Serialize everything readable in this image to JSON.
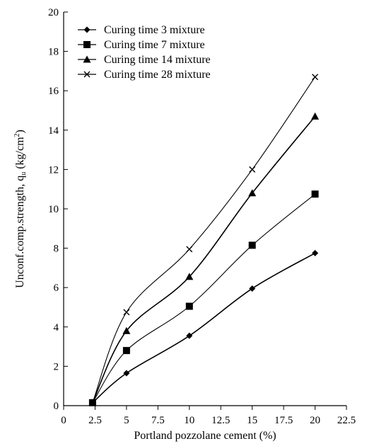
{
  "chart_data": {
    "type": "line",
    "xlabel": "Portland pozzolane cement (%)",
    "ylabel_main": "Unconf.comp.strength, q",
    "ylabel_sub": "u",
    "ylabel_unit": " (kg/cm",
    "ylabel_sup": "2",
    "ylabel_close": ")",
    "xlim": [
      0,
      22.5
    ],
    "ylim": [
      0,
      20
    ],
    "xticks": [
      "0",
      "2.5",
      "5",
      "7.5",
      "10",
      "12.5",
      "15",
      "17.5",
      "20",
      "22.5"
    ],
    "yticks": [
      "0",
      "2",
      "4",
      "6",
      "8",
      "10",
      "12",
      "14",
      "16",
      "18",
      "20"
    ],
    "legend_position": "top-left",
    "grid": false,
    "x": [
      2.3,
      5,
      10,
      15,
      20
    ],
    "series": [
      {
        "name": "Curing time 3 mixture",
        "marker": "diamond",
        "values": [
          0.15,
          1.65,
          3.55,
          5.95,
          7.75
        ]
      },
      {
        "name": "Curing time 7 mixture",
        "marker": "square",
        "values": [
          0.15,
          2.8,
          5.05,
          8.15,
          10.75
        ]
      },
      {
        "name": "Curing time 14 mixture",
        "marker": "triangle",
        "values": [
          0.15,
          3.8,
          6.55,
          10.8,
          14.7
        ]
      },
      {
        "name": "Curing time 28 mixture",
        "marker": "cross",
        "values": [
          0.15,
          4.75,
          7.95,
          12.0,
          16.7
        ]
      }
    ]
  }
}
